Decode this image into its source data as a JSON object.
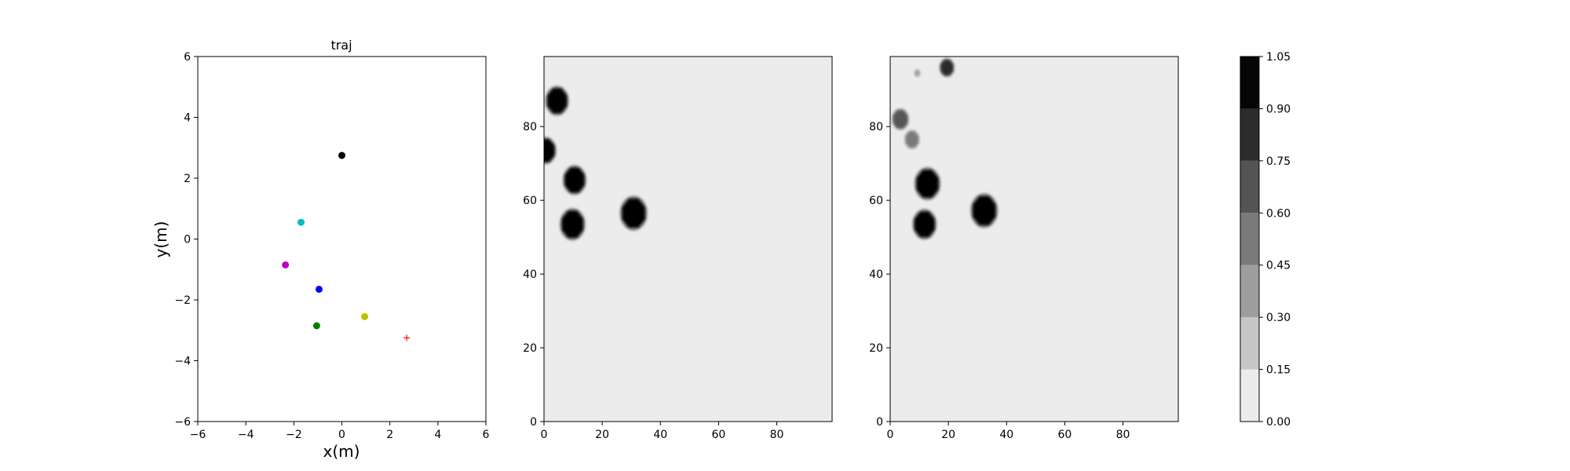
{
  "chart_data": [
    {
      "type": "scatter",
      "title": "traj",
      "xlabel": "x(m)",
      "ylabel": "y(m)",
      "xlim": [
        -6,
        6
      ],
      "ylim": [
        -6,
        6
      ],
      "xticks": [
        "−6",
        "−4",
        "−2",
        "0",
        "2",
        "4",
        "6"
      ],
      "yticks": [
        "−6",
        "−4",
        "−2",
        "0",
        "2",
        "4",
        "6"
      ],
      "grid": false,
      "points": [
        {
          "x": 0.0,
          "y": 2.75,
          "color": "#000000",
          "marker": "dot"
        },
        {
          "x": -1.7,
          "y": 0.55,
          "color": "#00bfbf",
          "marker": "dot"
        },
        {
          "x": -2.35,
          "y": -0.85,
          "color": "#bf00bf",
          "marker": "dot"
        },
        {
          "x": -0.95,
          "y": -1.65,
          "color": "#0000ff",
          "marker": "dot"
        },
        {
          "x": -1.05,
          "y": -2.85,
          "color": "#008000",
          "marker": "dot"
        },
        {
          "x": 0.95,
          "y": -2.55,
          "color": "#bfbf00",
          "marker": "dot"
        },
        {
          "x": 2.7,
          "y": -3.25,
          "color": "#ff0000",
          "marker": "plus"
        }
      ]
    },
    {
      "type": "heatmap",
      "xlim": [
        0,
        99
      ],
      "ylim": [
        0,
        99
      ],
      "xticks": [
        "0",
        "20",
        "40",
        "60",
        "80"
      ],
      "yticks": [
        "0",
        "20",
        "40",
        "60",
        "80"
      ],
      "background_value": 0.05,
      "blobs": [
        {
          "x": 4.5,
          "y": 87,
          "r": 3.6,
          "value": 1.0
        },
        {
          "x": 0.5,
          "y": 73.5,
          "r": 3.3,
          "value": 1.0
        },
        {
          "x": 10.5,
          "y": 65.5,
          "r": 3.6,
          "value": 1.0
        },
        {
          "x": 9.8,
          "y": 53.5,
          "r": 3.9,
          "value": 1.0
        },
        {
          "x": 30.8,
          "y": 56.5,
          "r": 4.2,
          "value": 1.0
        }
      ]
    },
    {
      "type": "heatmap",
      "xlim": [
        0,
        99
      ],
      "ylim": [
        0,
        99
      ],
      "xticks": [
        "0",
        "20",
        "40",
        "60",
        "80"
      ],
      "yticks": [
        "0",
        "20",
        "40",
        "60",
        "80"
      ],
      "background_value": 0.05,
      "blobs": [
        {
          "x": 19.5,
          "y": 96,
          "r": 2.3,
          "value": 0.8
        },
        {
          "x": 9.3,
          "y": 94.5,
          "r": 0.9,
          "value": 0.35
        },
        {
          "x": 3.5,
          "y": 82,
          "r": 2.6,
          "value": 0.6
        },
        {
          "x": 7.5,
          "y": 76.5,
          "r": 2.4,
          "value": 0.45
        },
        {
          "x": 12.8,
          "y": 64.5,
          "r": 4.0,
          "value": 1.0
        },
        {
          "x": 11.8,
          "y": 53.5,
          "r": 3.7,
          "value": 1.0
        },
        {
          "x": 32.3,
          "y": 57.2,
          "r": 4.2,
          "value": 1.0
        }
      ]
    },
    {
      "type": "colorbar",
      "levels": [
        0.0,
        0.15,
        0.3,
        0.45,
        0.6,
        0.75,
        0.9,
        1.05
      ],
      "tick_labels": [
        "0.00",
        "0.15",
        "0.30",
        "0.45",
        "0.60",
        "0.75",
        "0.90",
        "1.05"
      ],
      "colors": [
        "#ececec",
        "#c6c6c6",
        "#9e9e9e",
        "#7a7a7a",
        "#545454",
        "#2c2c2c",
        "#060606"
      ]
    }
  ]
}
